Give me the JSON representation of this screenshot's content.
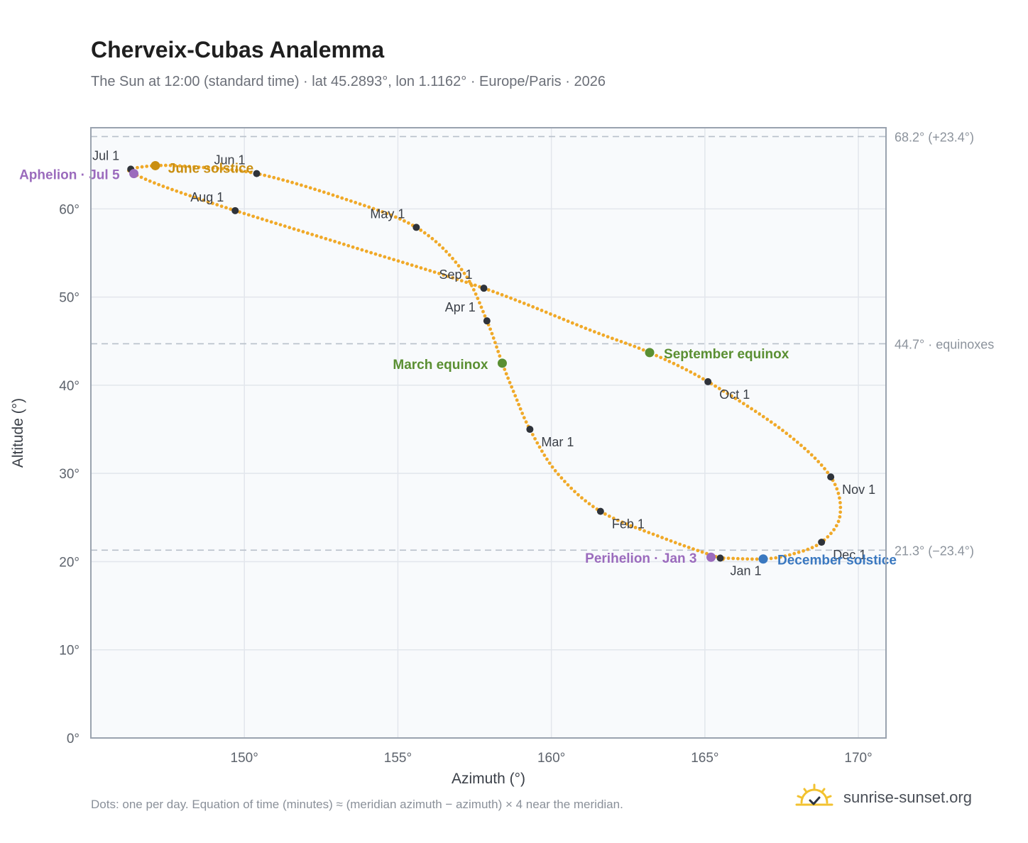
{
  "title": "Cherveix-Cubas Analemma",
  "subtitle": "The Sun at 12:00 (standard time) · lat 45.2893°, lon 1.1162° · Europe/Paris · 2026",
  "footnote": "Dots: one per day. Equation of time (minutes) ≈ (meridian azimuth − azimuth) × 4 near the meridian.",
  "brand": {
    "name": "sunrise-sunset.org",
    "logo_icon": "sun-checkmark-icon"
  },
  "colors": {
    "path": "#f0a928",
    "month_marker": "#2f333a",
    "solstice_june": "#c98f12",
    "solstice_december": "#3a78c0",
    "equinox": "#5a8f32",
    "apsis": "#9b6bbd",
    "reference_line": "#b8c0ca",
    "reference_text": "#8c939c",
    "plot_background": "#f8fafc",
    "grid": "#e2e6ec",
    "frame": "#9aa3af"
  },
  "chart_data": {
    "type": "scatter",
    "title": "Cherveix-Cubas Analemma",
    "xlabel": "Azimuth (°)",
    "ylabel": "Altitude (°)",
    "xlim": [
      145,
      170.9
    ],
    "ylim": [
      0,
      69.2
    ],
    "x_ticks": [
      {
        "value": 150,
        "label": "150°"
      },
      {
        "value": 155,
        "label": "155°"
      },
      {
        "value": 160,
        "label": "160°"
      },
      {
        "value": 165,
        "label": "165°"
      },
      {
        "value": 170,
        "label": "170°"
      }
    ],
    "y_ticks": [
      {
        "value": 0,
        "label": "0°"
      },
      {
        "value": 10,
        "label": "10°"
      },
      {
        "value": 20,
        "label": "20°"
      },
      {
        "value": 30,
        "label": "30°"
      },
      {
        "value": 40,
        "label": "40°"
      },
      {
        "value": 50,
        "label": "50°"
      },
      {
        "value": 60,
        "label": "60°"
      }
    ],
    "grid": true,
    "reference_lines": [
      {
        "altitude": 68.2,
        "label": "68.2° (+23.4°)"
      },
      {
        "altitude": 44.7,
        "label": "44.7° · equinoxes"
      },
      {
        "altitude": 21.3,
        "label": "21.3° (−23.4°)"
      }
    ],
    "path_anchors": [
      {
        "date": "Jan 1",
        "az": 165.5,
        "alt": 20.4
      },
      {
        "date": "Jan 16",
        "az": 163.7,
        "alt": 22.6
      },
      {
        "date": "Feb 1",
        "az": 161.6,
        "alt": 25.7
      },
      {
        "date": "Feb 15",
        "az": 160.2,
        "alt": 30.0
      },
      {
        "date": "Mar 1",
        "az": 159.3,
        "alt": 35.0
      },
      {
        "date": "Mar 10",
        "az": 158.8,
        "alt": 39.0
      },
      {
        "date": "Mar 20",
        "az": 158.4,
        "alt": 42.5
      },
      {
        "date": "Apr 1",
        "az": 157.9,
        "alt": 47.3
      },
      {
        "date": "Apr 15",
        "az": 157.1,
        "alt": 53.0
      },
      {
        "date": "May 1",
        "az": 155.6,
        "alt": 57.9
      },
      {
        "date": "May 15",
        "az": 153.2,
        "alt": 61.2
      },
      {
        "date": "Jun 1",
        "az": 150.4,
        "alt": 64.0
      },
      {
        "date": "Jun 15",
        "az": 148.2,
        "alt": 64.8
      },
      {
        "date": "Jun 21",
        "az": 147.1,
        "alt": 64.9
      },
      {
        "date": "Jul 1",
        "az": 146.3,
        "alt": 64.5
      },
      {
        "date": "Jul 5",
        "az": 146.4,
        "alt": 64.0
      },
      {
        "date": "Jul 15",
        "az": 147.4,
        "alt": 62.5
      },
      {
        "date": "Aug 1",
        "az": 149.7,
        "alt": 59.8
      },
      {
        "date": "Aug 15",
        "az": 153.5,
        "alt": 55.7
      },
      {
        "date": "Sep 1",
        "az": 157.8,
        "alt": 51.0
      },
      {
        "date": "Sep 15",
        "az": 161.3,
        "alt": 46.2
      },
      {
        "date": "Sep 23",
        "az": 163.2,
        "alt": 43.7
      },
      {
        "date": "Oct 1",
        "az": 165.1,
        "alt": 40.4
      },
      {
        "date": "Oct 15",
        "az": 167.6,
        "alt": 34.7
      },
      {
        "date": "Nov 1",
        "az": 169.1,
        "alt": 29.6
      },
      {
        "date": "Nov 15",
        "az": 169.4,
        "alt": 25.2
      },
      {
        "date": "Dec 1",
        "az": 168.8,
        "alt": 22.2
      },
      {
        "date": "Dec 10",
        "az": 167.8,
        "alt": 20.8
      },
      {
        "date": "Dec 21",
        "az": 166.9,
        "alt": 20.3
      },
      {
        "date": "Dec 31",
        "az": 165.6,
        "alt": 20.4
      }
    ],
    "month_markers": [
      {
        "label": "Jan 1",
        "az": 165.5,
        "alt": 20.4,
        "anchor": "start",
        "dx": 14,
        "dy": 24
      },
      {
        "label": "Feb 1",
        "az": 161.6,
        "alt": 25.7,
        "anchor": "start",
        "dx": 16,
        "dy": 24
      },
      {
        "label": "Mar 1",
        "az": 159.3,
        "alt": 35.0,
        "anchor": "start",
        "dx": 16,
        "dy": 24
      },
      {
        "label": "Apr 1",
        "az": 157.9,
        "alt": 47.3,
        "anchor": "end",
        "dx": -16,
        "dy": -13
      },
      {
        "label": "May 1",
        "az": 155.6,
        "alt": 57.9,
        "anchor": "end",
        "dx": -16,
        "dy": -13
      },
      {
        "label": "Jun 1",
        "az": 150.4,
        "alt": 64.0,
        "anchor": "end",
        "dx": -16,
        "dy": -13
      },
      {
        "label": "Jul 1",
        "az": 146.3,
        "alt": 64.5,
        "anchor": "end",
        "dx": -16,
        "dy": -13
      },
      {
        "label": "Aug 1",
        "az": 149.7,
        "alt": 59.8,
        "anchor": "end",
        "dx": -16,
        "dy": -13
      },
      {
        "label": "Sep 1",
        "az": 157.8,
        "alt": 51.0,
        "anchor": "end",
        "dx": -16,
        "dy": -13
      },
      {
        "label": "Oct 1",
        "az": 165.1,
        "alt": 40.4,
        "anchor": "start",
        "dx": 16,
        "dy": 24
      },
      {
        "label": "Nov 1",
        "az": 169.1,
        "alt": 29.6,
        "anchor": "start",
        "dx": 16,
        "dy": 24
      },
      {
        "label": "Dec 1",
        "az": 168.8,
        "alt": 22.2,
        "anchor": "start",
        "dx": 16,
        "dy": 24
      }
    ],
    "events": [
      {
        "label": "June solstice",
        "az": 147.1,
        "alt": 64.9,
        "color_key": "solstice_june",
        "anchor": "start",
        "dx": 18,
        "dy": 10
      },
      {
        "label": "Aphelion · Jul 5",
        "az": 146.4,
        "alt": 64.0,
        "color_key": "apsis",
        "anchor": "end",
        "dx": -20,
        "dy": 8
      },
      {
        "label": "March equinox",
        "az": 158.4,
        "alt": 42.5,
        "color_key": "equinox",
        "anchor": "end",
        "dx": -20,
        "dy": 8
      },
      {
        "label": "September equinox",
        "az": 163.2,
        "alt": 43.7,
        "color_key": "equinox",
        "anchor": "start",
        "dx": 20,
        "dy": 8
      },
      {
        "label": "Perihelion · Jan 3",
        "az": 165.2,
        "alt": 20.5,
        "color_key": "apsis",
        "anchor": "end",
        "dx": -20,
        "dy": 8
      },
      {
        "label": "December solstice",
        "az": 166.9,
        "alt": 20.3,
        "color_key": "solstice_december",
        "anchor": "start",
        "dx": 20,
        "dy": 8
      }
    ]
  }
}
